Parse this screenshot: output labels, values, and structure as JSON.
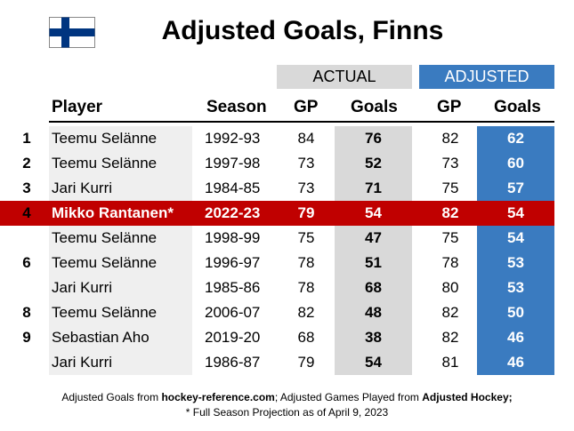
{
  "title": "Adjusted Goals, Finns",
  "flag_icon": "finland-flag-icon",
  "colors": {
    "actual": "#d9d9d9",
    "adjusted": "#3a7bc0",
    "highlight": "#c00000",
    "player_bg": "#efefef"
  },
  "groups": {
    "actual": "ACTUAL",
    "adjusted": "ADJUSTED"
  },
  "headers": {
    "player": "Player",
    "season": "Season",
    "gp": "GP",
    "goals": "Goals",
    "adj_gp": "GP",
    "adj_goals": "Goals"
  },
  "rows": [
    {
      "rank": "1",
      "player": "Teemu Selänne",
      "season": "1992-93",
      "gp": "84",
      "goals": "76",
      "adj_gp": "82",
      "adj_goals": "62",
      "highlight": false
    },
    {
      "rank": "2",
      "player": "Teemu Selänne",
      "season": "1997-98",
      "gp": "73",
      "goals": "52",
      "adj_gp": "73",
      "adj_goals": "60",
      "highlight": false
    },
    {
      "rank": "3",
      "player": "Jari Kurri",
      "season": "1984-85",
      "gp": "73",
      "goals": "71",
      "adj_gp": "75",
      "adj_goals": "57",
      "highlight": false
    },
    {
      "rank": "4",
      "player": "Mikko Rantanen*",
      "season": "2022-23",
      "gp": "79",
      "goals": "54",
      "adj_gp": "82",
      "adj_goals": "54",
      "highlight": true
    },
    {
      "rank": "",
      "player": "Teemu Selänne",
      "season": "1998-99",
      "gp": "75",
      "goals": "47",
      "adj_gp": "75",
      "adj_goals": "54",
      "highlight": false
    },
    {
      "rank": "6",
      "player": "Teemu Selänne",
      "season": "1996-97",
      "gp": "78",
      "goals": "51",
      "adj_gp": "78",
      "adj_goals": "53",
      "highlight": false
    },
    {
      "rank": "",
      "player": "Jari Kurri",
      "season": "1985-86",
      "gp": "78",
      "goals": "68",
      "adj_gp": "80",
      "adj_goals": "53",
      "highlight": false
    },
    {
      "rank": "8",
      "player": "Teemu Selänne",
      "season": "2006-07",
      "gp": "82",
      "goals": "48",
      "adj_gp": "82",
      "adj_goals": "50",
      "highlight": false
    },
    {
      "rank": "9",
      "player": "Sebastian Aho",
      "season": "2019-20",
      "gp": "68",
      "goals": "38",
      "adj_gp": "82",
      "adj_goals": "46",
      "highlight": false
    },
    {
      "rank": "",
      "player": "Jari Kurri",
      "season": "1986-87",
      "gp": "79",
      "goals": "54",
      "adj_gp": "81",
      "adj_goals": "46",
      "highlight": false
    }
  ],
  "footer": {
    "line1_a": "Adjusted Goals from ",
    "line1_b": "hockey-reference.com",
    "line1_c": "; Adjusted Games Played from ",
    "line1_d": "Adjusted Hockey;",
    "line2": "* Full Season Projection as of April 9, 2023"
  }
}
